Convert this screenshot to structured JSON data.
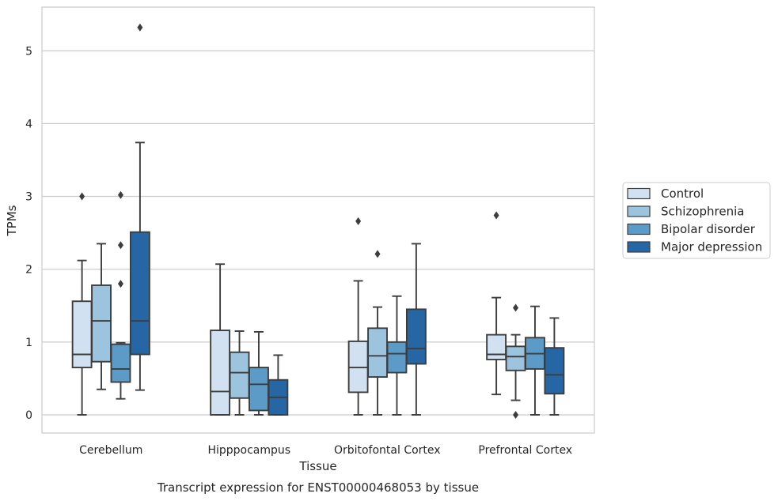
{
  "chart_data": {
    "type": "box",
    "caption": "Transcript expression for ENST00000468053 by tissue",
    "xlabel": "Tissue",
    "ylabel": "TPMs",
    "ylim": [
      -0.25,
      5.6
    ],
    "yticks": [
      0,
      1,
      2,
      3,
      4,
      5
    ],
    "grid": "horizontal",
    "legend_position": "right",
    "categories": [
      "Cerebellum",
      "Hipppocampus",
      "Orbitofontal Cortex",
      "Prefrontal Cortex"
    ],
    "series": [
      {
        "name": "Control",
        "color": "#d1e1f1",
        "boxes": [
          {
            "whislo": 0.0,
            "q1": 0.65,
            "med": 0.83,
            "q3": 1.56,
            "whishi": 2.12,
            "fliers": [
              3.0
            ]
          },
          {
            "whislo": 0.0,
            "q1": 0.0,
            "med": 0.32,
            "q3": 1.16,
            "whishi": 2.07,
            "fliers": []
          },
          {
            "whislo": 0.0,
            "q1": 0.31,
            "med": 0.65,
            "q3": 1.01,
            "whishi": 1.84,
            "fliers": [
              2.66
            ]
          },
          {
            "whislo": 0.28,
            "q1": 0.76,
            "med": 0.83,
            "q3": 1.1,
            "whishi": 1.61,
            "fliers": [
              2.74
            ]
          }
        ]
      },
      {
        "name": "Schizophrenia",
        "color": "#9dc4de",
        "boxes": [
          {
            "whislo": 0.35,
            "q1": 0.73,
            "med": 1.29,
            "q3": 1.78,
            "whishi": 2.35,
            "fliers": []
          },
          {
            "whislo": 0.0,
            "q1": 0.23,
            "med": 0.58,
            "q3": 0.86,
            "whishi": 1.15,
            "fliers": []
          },
          {
            "whislo": 0.0,
            "q1": 0.52,
            "med": 0.81,
            "q3": 1.19,
            "whishi": 1.48,
            "fliers": [
              2.21
            ]
          },
          {
            "whislo": 0.2,
            "q1": 0.61,
            "med": 0.8,
            "q3": 0.94,
            "whishi": 1.1,
            "fliers": [
              1.47,
              0.0
            ]
          }
        ]
      },
      {
        "name": "Bipolar disorder",
        "color": "#5c9ac7",
        "boxes": [
          {
            "whislo": 0.22,
            "q1": 0.45,
            "med": 0.63,
            "q3": 0.97,
            "whishi": 0.99,
            "fliers": [
              1.8,
              2.33,
              3.02
            ]
          },
          {
            "whislo": 0.0,
            "q1": 0.06,
            "med": 0.42,
            "q3": 0.65,
            "whishi": 1.14,
            "fliers": []
          },
          {
            "whislo": 0.0,
            "q1": 0.58,
            "med": 0.84,
            "q3": 1.0,
            "whishi": 1.63,
            "fliers": []
          },
          {
            "whislo": 0.0,
            "q1": 0.63,
            "med": 0.84,
            "q3": 1.06,
            "whishi": 1.49,
            "fliers": []
          }
        ]
      },
      {
        "name": "Major depression",
        "color": "#2666a4",
        "boxes": [
          {
            "whislo": 0.34,
            "q1": 0.83,
            "med": 1.29,
            "q3": 2.51,
            "whishi": 3.74,
            "fliers": [
              5.32
            ]
          },
          {
            "whislo": 0.0,
            "q1": 0.0,
            "med": 0.24,
            "q3": 0.48,
            "whishi": 0.82,
            "fliers": []
          },
          {
            "whislo": 0.0,
            "q1": 0.7,
            "med": 0.91,
            "q3": 1.45,
            "whishi": 2.35,
            "fliers": []
          },
          {
            "whislo": 0.0,
            "q1": 0.29,
            "med": 0.55,
            "q3": 0.92,
            "whishi": 1.33,
            "fliers": []
          }
        ]
      }
    ]
  }
}
